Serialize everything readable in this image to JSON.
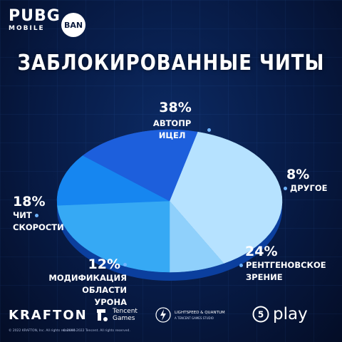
{
  "brand": {
    "pubg_line1": "PUBG",
    "pubg_line2": "MOBILE",
    "ban_badge": "BAN"
  },
  "chart_data": {
    "type": "pie",
    "title": "ЗАБЛОКИРОВАННЫЕ ЧИТЫ",
    "slices": [
      {
        "label": "АВТОПР ИЦЕЛ",
        "value": 38,
        "value_text": "38%",
        "color": "#b6e2ff"
      },
      {
        "label": "ДРУГОЕ",
        "value": 8,
        "value_text": "8%",
        "color": "#8fd0fb"
      },
      {
        "label": "РЕНТГЕНОВСКОЕ ЗРЕНИЕ",
        "value": 24,
        "value_text": "24%",
        "color": "#36a9f4"
      },
      {
        "label": "МОДИФИКАЦИЯ ОБЛАСТИ УРОНА",
        "value": 12,
        "value_text": "12%",
        "color": "#1686f0"
      },
      {
        "label": "ЧИТ СКОРОСТИ",
        "value": 18,
        "value_text": "18%",
        "color": "#1d5fdc"
      }
    ],
    "labels": {
      "aim": {
        "pct": "38%",
        "line1": "АВТОПР ИЦЕЛ"
      },
      "other": {
        "pct": "8%",
        "line1": "ДРУГОЕ"
      },
      "xray": {
        "pct": "24%",
        "line1": "РЕНТГЕНОВСКОЕ",
        "line2": "ЗРЕНИЕ"
      },
      "damage": {
        "pct": "12%",
        "line1": "МОДИФИКАЦИЯ",
        "line2": "ОБЛАСТИ УРОНА"
      },
      "speed": {
        "pct": "18%",
        "line1": "ЧИТ",
        "line2": "СКОРОСТИ"
      }
    }
  },
  "footer": {
    "krafton": "KRAFTON",
    "tencent_line1": "Tencent",
    "tencent_line2": "Games",
    "lightspeed_line1": "LIGHTSPEED & QUANTUM",
    "lightspeed_line2": "A TENCENT GAMES STUDIO",
    "play": "play",
    "copy1": "© 2022 KRAFTON, Inc. All rights reserved.",
    "copy2": "© 2000-2022 Tencent. All rights reserved."
  },
  "colors": {
    "background": "#071a44",
    "accent": "#6fb4ff"
  }
}
